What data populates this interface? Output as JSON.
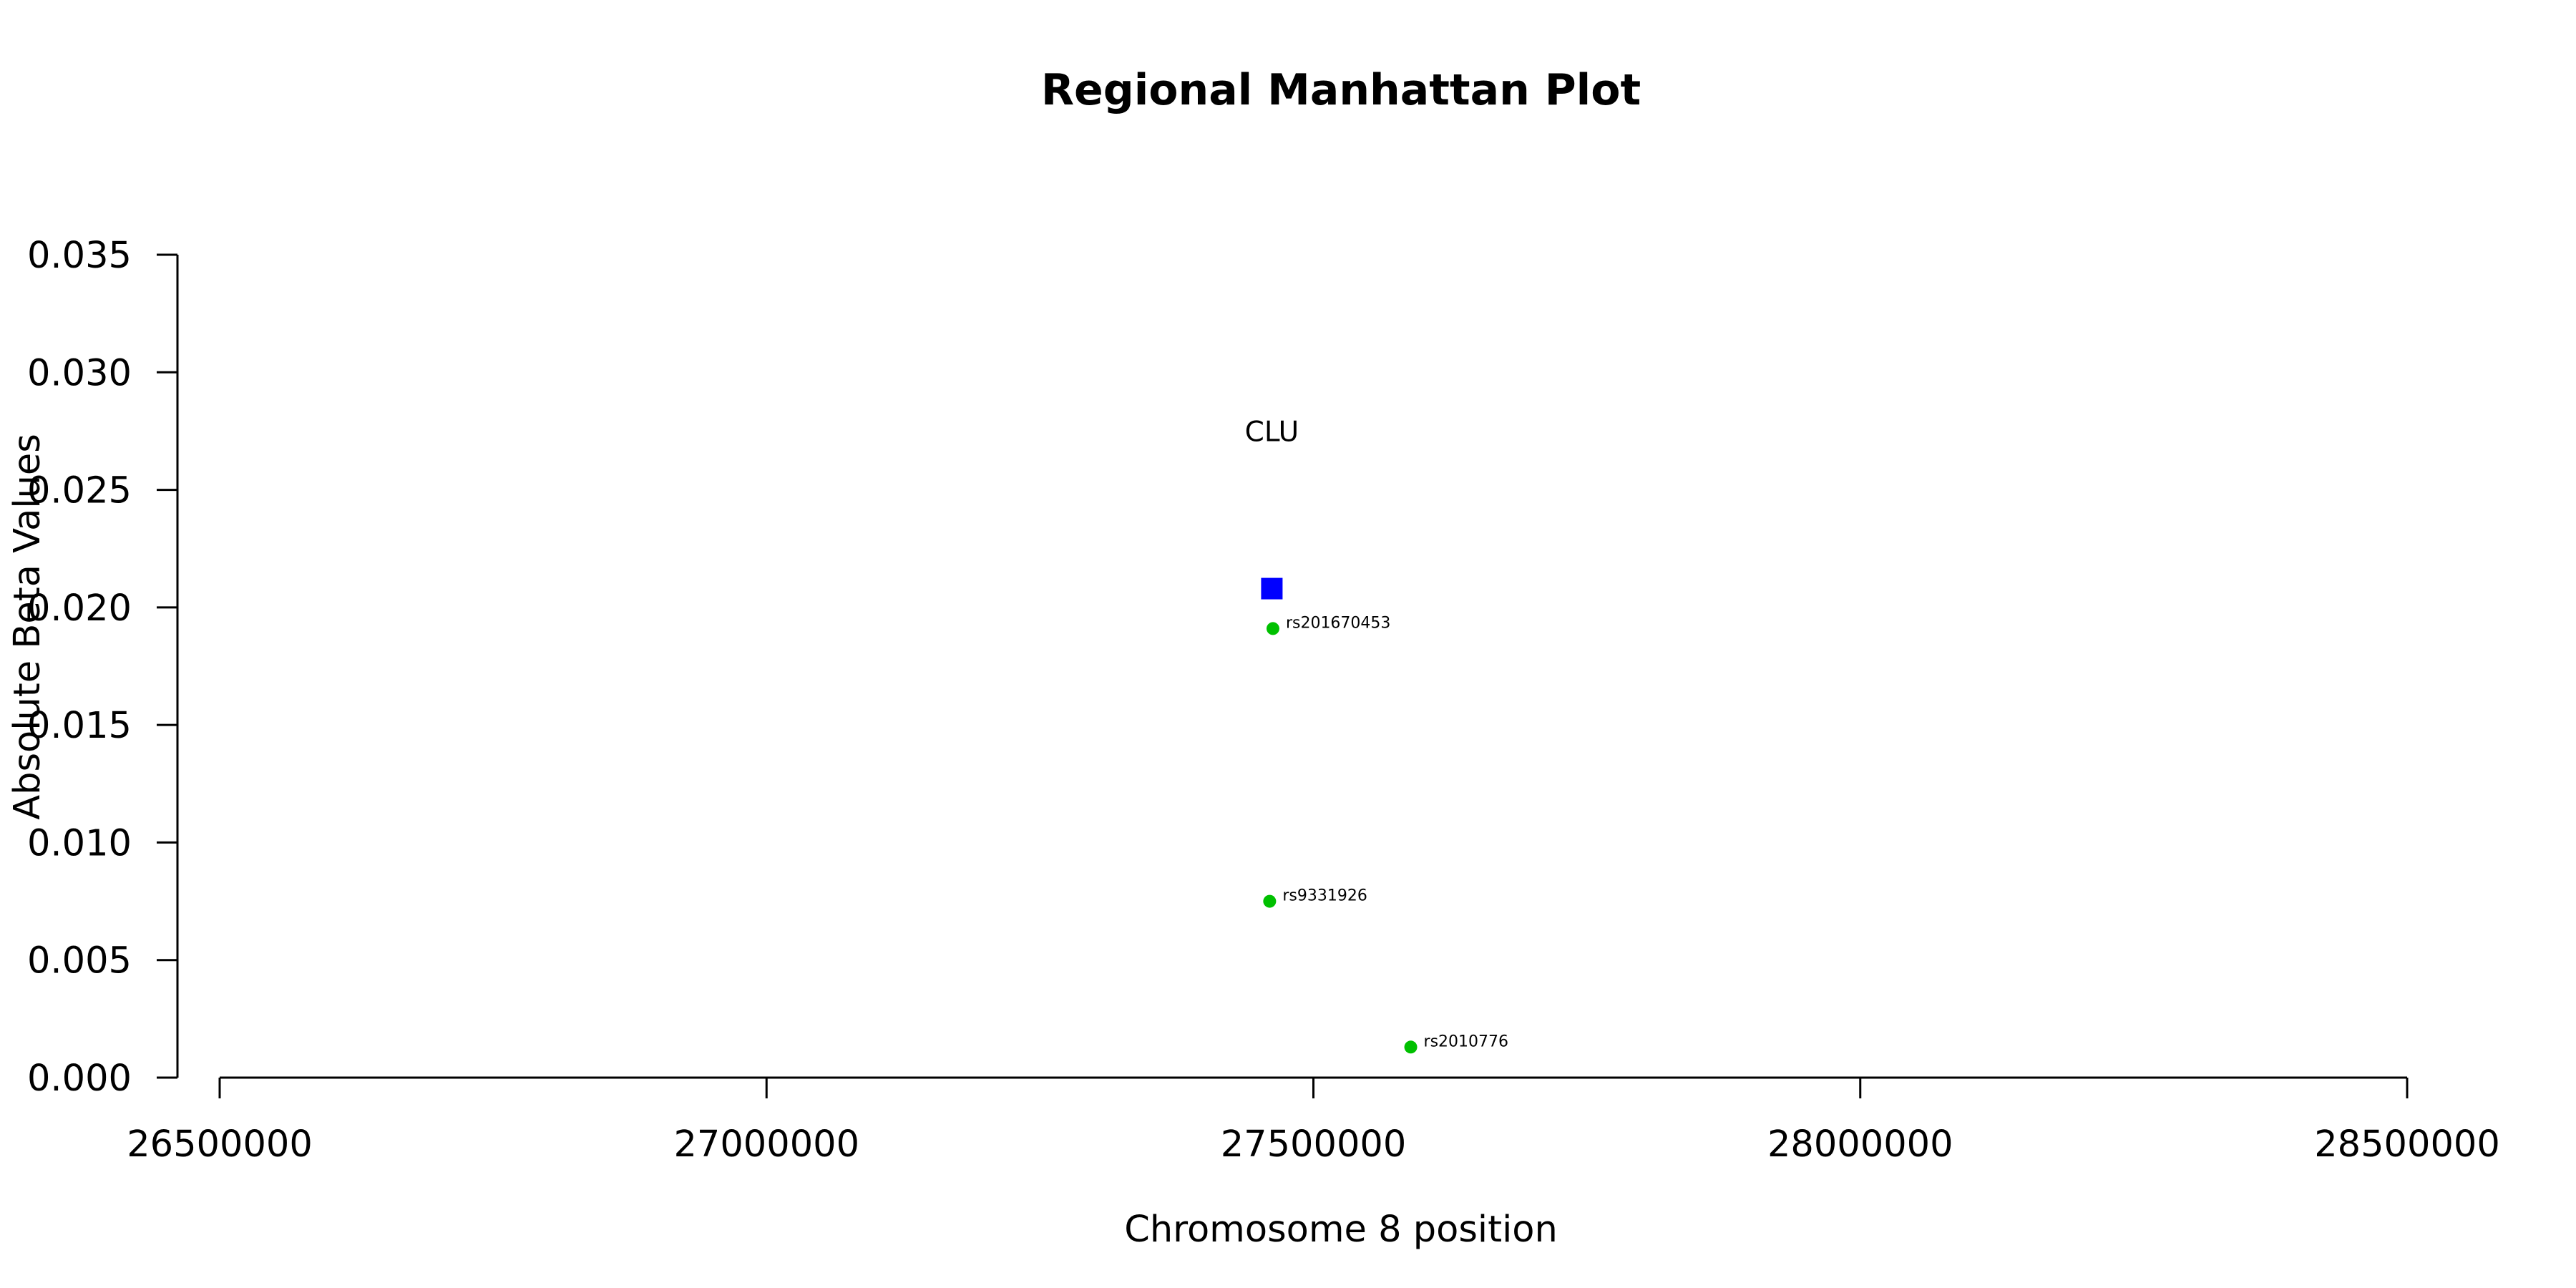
{
  "chart_data": {
    "type": "scatter",
    "title": "Regional Manhattan Plot",
    "xlabel": "Chromosome 8 position",
    "ylabel": "Absolute Beta Values",
    "xlim": [
      26500000,
      28500000
    ],
    "ylim": [
      0,
      0.035
    ],
    "xticks": [
      26500000,
      27000000,
      27500000,
      28000000,
      28500000
    ],
    "xtick_labels": [
      "26500000",
      "27000000",
      "27500000",
      "28000000",
      "28500000"
    ],
    "yticks": [
      0,
      0.005,
      0.01,
      0.015,
      0.02,
      0.025,
      0.03,
      0.035
    ],
    "ytick_labels": [
      "0.000",
      "0.005",
      "0.010",
      "0.015",
      "0.020",
      "0.025",
      "0.030",
      "0.035"
    ],
    "grid": false,
    "gene": {
      "label": "CLU",
      "x": 27462000,
      "y": 0.0208,
      "label_y": 0.0275,
      "color": "#0000ff",
      "marker": "square"
    },
    "snps": [
      {
        "label": "rs201670453",
        "x": 27463000,
        "y": 0.0191,
        "color": "#00c000"
      },
      {
        "label": "rs9331926",
        "x": 27460000,
        "y": 0.0075,
        "color": "#00c000"
      },
      {
        "label": "rs2010776",
        "x": 27589000,
        "y": 0.0013,
        "color": "#00c000"
      }
    ]
  }
}
